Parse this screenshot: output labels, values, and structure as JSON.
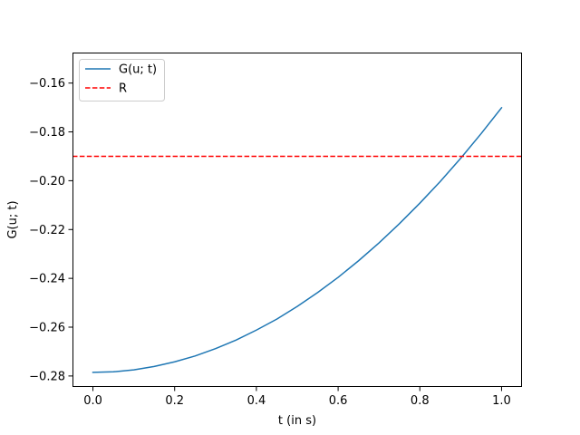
{
  "chart_data": {
    "type": "line",
    "title": "",
    "xlabel": "t (in s)",
    "ylabel": "G(u; t)",
    "xlim": [
      -0.05,
      1.05
    ],
    "ylim": [
      -0.2845,
      -0.1475
    ],
    "xticks": [
      0.0,
      0.2,
      0.4,
      0.6,
      0.8,
      1.0
    ],
    "xtick_labels": [
      "0.0",
      "0.2",
      "0.4",
      "0.6",
      "0.8",
      "1.0"
    ],
    "yticks": [
      -0.28,
      -0.26,
      -0.24,
      -0.22,
      -0.2,
      -0.18,
      -0.16
    ],
    "ytick_labels": [
      "−0.28",
      "−0.26",
      "−0.24",
      "−0.22",
      "−0.20",
      "−0.18",
      "−0.16"
    ],
    "grid": false,
    "legend_position": "top-left",
    "series": [
      {
        "name": "G(u; t)",
        "color": "#1f77b4",
        "style": "solid",
        "x": [
          0.0,
          0.05,
          0.1,
          0.15,
          0.2,
          0.25,
          0.3,
          0.35,
          0.4,
          0.45,
          0.5,
          0.55,
          0.6,
          0.65,
          0.7,
          0.75,
          0.8,
          0.85,
          0.9,
          0.95,
          1.0
        ],
        "y": [
          -0.2785,
          -0.2783,
          -0.2775,
          -0.2761,
          -0.2742,
          -0.2718,
          -0.2688,
          -0.2653,
          -0.2612,
          -0.2567,
          -0.2515,
          -0.2458,
          -0.2396,
          -0.2328,
          -0.2255,
          -0.2176,
          -0.2092,
          -0.2003,
          -0.1908,
          -0.1807,
          -0.1701
        ]
      },
      {
        "name": "R",
        "color": "#ff0000",
        "style": "dashed",
        "x": [
          -0.05,
          1.05
        ],
        "y": [
          -0.19,
          -0.19
        ]
      }
    ]
  }
}
